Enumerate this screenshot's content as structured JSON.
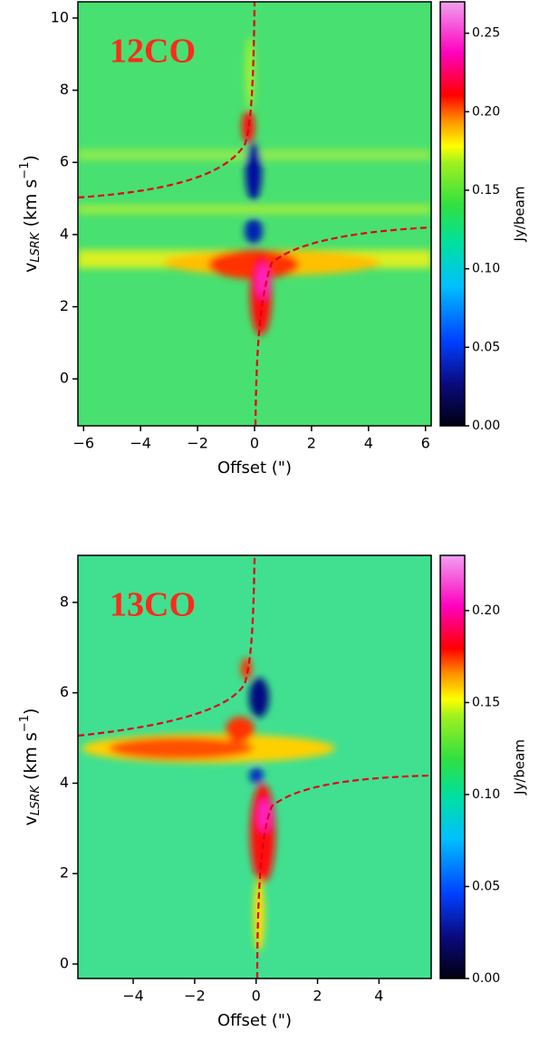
{
  "chart_data": [
    {
      "type": "heatmap",
      "annotation": "12CO",
      "xlabel": "Offset (\")",
      "ylabel": {
        "text": "v",
        "sub": "LSRK",
        "unit": " (km s",
        "sup": "−1",
        "close": ")"
      },
      "xlim": [
        -6.2,
        6.2
      ],
      "ylim": [
        -1.3,
        10.45
      ],
      "xticks": [
        {
          "value": -6,
          "label": "−6"
        },
        {
          "value": -4,
          "label": "−4"
        },
        {
          "value": -2,
          "label": "−2"
        },
        0,
        2,
        4,
        6
      ],
      "yticks": [
        0,
        2,
        4,
        6,
        8,
        10
      ],
      "colorbar": {
        "label": "Jy/beam",
        "lim": [
          0,
          0.27
        ],
        "ticks": [
          {
            "value": 0,
            "label": "0.00"
          },
          {
            "value": 0.05,
            "label": "0.05"
          },
          {
            "value": 0.1,
            "label": "0.10"
          },
          {
            "value": 0.15,
            "label": "0.15"
          },
          {
            "value": 0.2,
            "label": "0.20"
          },
          {
            "value": 0.25,
            "label": "0.25"
          }
        ]
      }
    },
    {
      "type": "heatmap",
      "annotation": "13CO",
      "xlabel": "Offset (\")",
      "ylabel": {
        "text": "v",
        "sub": "LSRK",
        "unit": " (km s",
        "sup": "−1",
        "close": ")"
      },
      "xlim": [
        -5.8,
        5.7
      ],
      "ylim": [
        -0.32,
        9.04
      ],
      "xticks": [
        {
          "value": -4,
          "label": "−4"
        },
        {
          "value": -2,
          "label": "−2"
        },
        0,
        2,
        4
      ],
      "yticks": [
        0,
        2,
        4,
        6,
        8
      ],
      "colorbar": {
        "label": "Jy/beam",
        "lim": [
          0,
          0.23
        ],
        "ticks": [
          {
            "value": 0,
            "label": "0.00"
          },
          {
            "value": 0.05,
            "label": "0.05"
          },
          {
            "value": 0.1,
            "label": "0.10"
          },
          {
            "value": 0.15,
            "label": "0.15"
          },
          {
            "value": 0.2,
            "label": "0.20"
          }
        ]
      }
    }
  ]
}
